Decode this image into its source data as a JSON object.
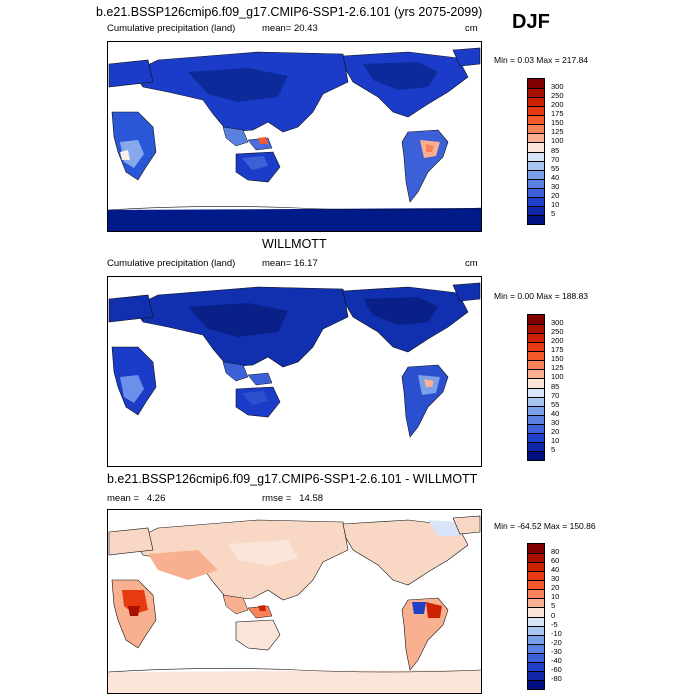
{
  "header": {
    "title": "b.e21.BSSP126cmip6.f09_g17.CMIP6-SSP1-2.6.101 (yrs 2075-2099)",
    "season": "DJF"
  },
  "panels": [
    {
      "id": "model",
      "title": "",
      "left_label": "Cumulative precipitation (land)",
      "mean_label": "mean=",
      "mean_value": "20.43",
      "unit": "cm",
      "minmax": "Min =   0.03 Max = 217.84",
      "colorbar_levels": [
        "300",
        "250",
        "200",
        "175",
        "150",
        "125",
        "100",
        "85",
        "70",
        "55",
        "40",
        "30",
        "20",
        "10",
        "5"
      ],
      "colorbar_colors": [
        "#7f0000",
        "#a81000",
        "#cc2200",
        "#e83a10",
        "#f55a2a",
        "#f8825a",
        "#f8b090",
        "#fbe5d8",
        "#d8e5f8",
        "#a8c4f0",
        "#7aa0ea",
        "#5a80e0",
        "#3c60d8",
        "#2040c8",
        "#1028a8",
        "#001080"
      ]
    },
    {
      "id": "obs",
      "title": "WILLMOTT",
      "left_label": "Cumulative precipitation (land)",
      "mean_label": "mean=",
      "mean_value": "16.17",
      "unit": "cm",
      "minmax": "Min =   0.00 Max = 188.83",
      "colorbar_levels": [
        "300",
        "250",
        "200",
        "175",
        "150",
        "125",
        "100",
        "85",
        "70",
        "55",
        "40",
        "30",
        "20",
        "10",
        "5"
      ],
      "colorbar_colors": [
        "#7f0000",
        "#a81000",
        "#cc2200",
        "#e83a10",
        "#f55a2a",
        "#f8825a",
        "#f8b090",
        "#fbe5d8",
        "#d8e5f8",
        "#a8c4f0",
        "#7aa0ea",
        "#5a80e0",
        "#3c60d8",
        "#2040c8",
        "#1028a8",
        "#001080"
      ]
    },
    {
      "id": "diff",
      "title": "b.e21.BSSP126cmip6.f09_g17.CMIP6-SSP1-2.6.101 - WILLMOTT",
      "left_label": "mean =",
      "mean_value": "4.26",
      "rmse_label": "rmse =",
      "rmse_value": "14.58",
      "minmax": "Min = -64.52 Max = 150.86",
      "colorbar_levels": [
        "80",
        "60",
        "40",
        "30",
        "20",
        "10",
        "5",
        "0",
        "-5",
        "-10",
        "-20",
        "-30",
        "-40",
        "-60",
        "-80"
      ],
      "colorbar_colors": [
        "#7f0000",
        "#a81000",
        "#cc2200",
        "#e83a10",
        "#f55a2a",
        "#f8825a",
        "#f8b090",
        "#fbe5d8",
        "#d8e5f8",
        "#a8c4f0",
        "#7aa0ea",
        "#5a80e0",
        "#3c60d8",
        "#2040c8",
        "#1028a8",
        "#001080"
      ]
    }
  ]
}
